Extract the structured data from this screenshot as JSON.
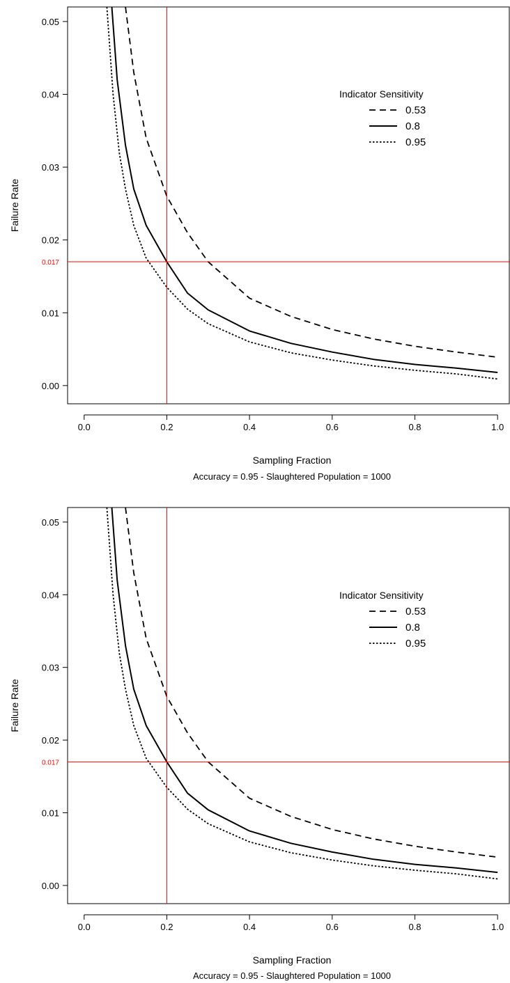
{
  "chart_data": [
    {
      "type": "line",
      "xlabel": "Sampling Fraction",
      "subtitle": "Accuracy = 0.95  -  Slaughtered Population = 1000",
      "ylabel": "Failure Rate",
      "xlim": [
        -0.04,
        1.03
      ],
      "ylim": [
        -0.0025,
        0.052
      ],
      "x_ticks": [
        "0.0",
        "0.2",
        "0.4",
        "0.6",
        "0.8",
        "1.0"
      ],
      "y_ticks": [
        "0.00",
        "0.01",
        "0.02",
        "0.03",
        "0.04",
        "0.05"
      ],
      "legend": {
        "title": "Indicator Sensitivity",
        "position": "top-right"
      },
      "reference_lines": {
        "x": 0.2,
        "y": 0.017,
        "y_label": "0.017",
        "color": "#ff0000"
      },
      "series": [
        {
          "name": "0.53",
          "style": "dashed",
          "x": [
            0.1,
            0.12,
            0.15,
            0.2,
            0.25,
            0.3,
            0.4,
            0.5,
            0.6,
            0.7,
            0.8,
            0.9,
            1.0
          ],
          "y": [
            0.052,
            0.043,
            0.034,
            0.026,
            0.021,
            0.017,
            0.012,
            0.0095,
            0.0077,
            0.0064,
            0.0054,
            0.0046,
            0.0039
          ]
        },
        {
          "name": "0.8",
          "style": "solid",
          "x": [
            0.067,
            0.08,
            0.1,
            0.12,
            0.15,
            0.2,
            0.25,
            0.3,
            0.4,
            0.5,
            0.6,
            0.7,
            0.8,
            0.9,
            1.0
          ],
          "y": [
            0.052,
            0.042,
            0.033,
            0.027,
            0.022,
            0.017,
            0.0127,
            0.0104,
            0.0075,
            0.0058,
            0.0046,
            0.0036,
            0.0029,
            0.0024,
            0.0018
          ]
        },
        {
          "name": "0.95",
          "style": "dotted",
          "x": [
            0.055,
            0.07,
            0.085,
            0.1,
            0.12,
            0.15,
            0.2,
            0.25,
            0.3,
            0.4,
            0.5,
            0.6,
            0.7,
            0.8,
            0.9,
            1.0
          ],
          "y": [
            0.052,
            0.04,
            0.032,
            0.027,
            0.022,
            0.0175,
            0.0135,
            0.0105,
            0.0085,
            0.006,
            0.0045,
            0.0035,
            0.0027,
            0.0021,
            0.0016,
            0.0009
          ]
        }
      ]
    },
    {
      "type": "line",
      "xlabel": "Sampling Fraction",
      "subtitle": "Accuracy = 0.95  -  Slaughtered Population = 1000",
      "ylabel": "Failure Rate",
      "xlim": [
        -0.04,
        1.03
      ],
      "ylim": [
        -0.0025,
        0.052
      ],
      "x_ticks": [
        "0.0",
        "0.2",
        "0.4",
        "0.6",
        "0.8",
        "1.0"
      ],
      "y_ticks": [
        "0.00",
        "0.01",
        "0.02",
        "0.03",
        "0.04",
        "0.05"
      ],
      "legend": {
        "title": "Indicator Sensitivity",
        "position": "top-right"
      },
      "reference_lines": {
        "x": 0.2,
        "y": 0.017,
        "y_label": "0.017",
        "color": "#ff0000"
      },
      "series": [
        {
          "name": "0.53",
          "style": "dashed",
          "x": [
            0.1,
            0.12,
            0.15,
            0.2,
            0.25,
            0.3,
            0.4,
            0.5,
            0.6,
            0.7,
            0.8,
            0.9,
            1.0
          ],
          "y": [
            0.052,
            0.043,
            0.034,
            0.026,
            0.021,
            0.017,
            0.012,
            0.0095,
            0.0077,
            0.0064,
            0.0054,
            0.0046,
            0.0039
          ]
        },
        {
          "name": "0.8",
          "style": "solid",
          "x": [
            0.067,
            0.08,
            0.1,
            0.12,
            0.15,
            0.2,
            0.25,
            0.3,
            0.4,
            0.5,
            0.6,
            0.7,
            0.8,
            0.9,
            1.0
          ],
          "y": [
            0.052,
            0.042,
            0.033,
            0.027,
            0.022,
            0.017,
            0.0127,
            0.0104,
            0.0075,
            0.0058,
            0.0046,
            0.0036,
            0.0029,
            0.0024,
            0.0018
          ]
        },
        {
          "name": "0.95",
          "style": "dotted",
          "x": [
            0.055,
            0.07,
            0.085,
            0.1,
            0.12,
            0.15,
            0.2,
            0.25,
            0.3,
            0.4,
            0.5,
            0.6,
            0.7,
            0.8,
            0.9,
            1.0
          ],
          "y": [
            0.052,
            0.04,
            0.032,
            0.027,
            0.022,
            0.0175,
            0.0135,
            0.0105,
            0.0085,
            0.006,
            0.0045,
            0.0035,
            0.0027,
            0.0021,
            0.0016,
            0.0009
          ]
        }
      ]
    }
  ]
}
